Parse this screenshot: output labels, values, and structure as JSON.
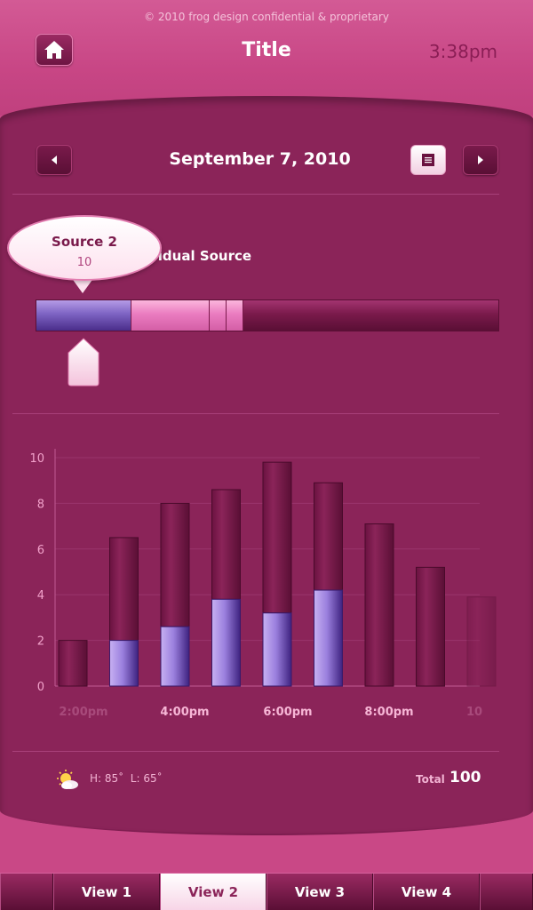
{
  "header": {
    "copyright": "© 2010 frog design confidential & proprietary",
    "title": "Title",
    "time": "3:38pm",
    "home_icon": "home-icon"
  },
  "date_nav": {
    "date": "September 7, 2010",
    "prev_icon": "chevron-left-icon",
    "next_icon": "chevron-right-icon",
    "list_icon": "list-icon"
  },
  "source_section": {
    "label": "vidual Source",
    "bubble": {
      "title": "Source 2",
      "value": "10"
    },
    "segments": [
      {
        "name": "Source 2",
        "fraction": 0.205,
        "color": "#7d63c3"
      },
      {
        "name": "segment-2",
        "fraction": 0.169,
        "color": "#ea7cc0"
      },
      {
        "name": "segment-3",
        "fraction": 0.036,
        "color": "#ea7cc0"
      },
      {
        "name": "segment-4",
        "fraction": 0.036,
        "color": "#ea7cc0"
      },
      {
        "name": "segment-5",
        "fraction": 0.554,
        "color": "#7a1a4b"
      }
    ]
  },
  "chart_data": {
    "type": "bar",
    "stacked": true,
    "ylim": [
      0,
      10
    ],
    "yticks": [
      "0",
      "2",
      "4",
      "6",
      "8",
      "10"
    ],
    "xtick_labels": [
      "2:00pm",
      "4:00pm",
      "6:00pm",
      "8:00pm",
      "10"
    ],
    "series": [
      {
        "values": [
          0,
          2.0,
          2.6,
          3.8,
          3.2,
          4.2,
          0,
          0,
          0
        ],
        "color": "#8f74d6"
      },
      {
        "values": [
          2.0,
          4.5,
          5.4,
          4.8,
          6.6,
          4.7,
          7.1,
          5.2,
          3.9
        ],
        "color": "#7a1a4b"
      }
    ],
    "grid": true
  },
  "footer": {
    "weather_icon": "partly-sunny-icon",
    "high": "H: 85˚",
    "low": "L: 65˚",
    "total_label": "Total",
    "total_value": "100"
  },
  "tabs": [
    {
      "label": "View 1",
      "active": false
    },
    {
      "label": "View 2",
      "active": true
    },
    {
      "label": "View 3",
      "active": false
    },
    {
      "label": "View 4",
      "active": false
    }
  ]
}
